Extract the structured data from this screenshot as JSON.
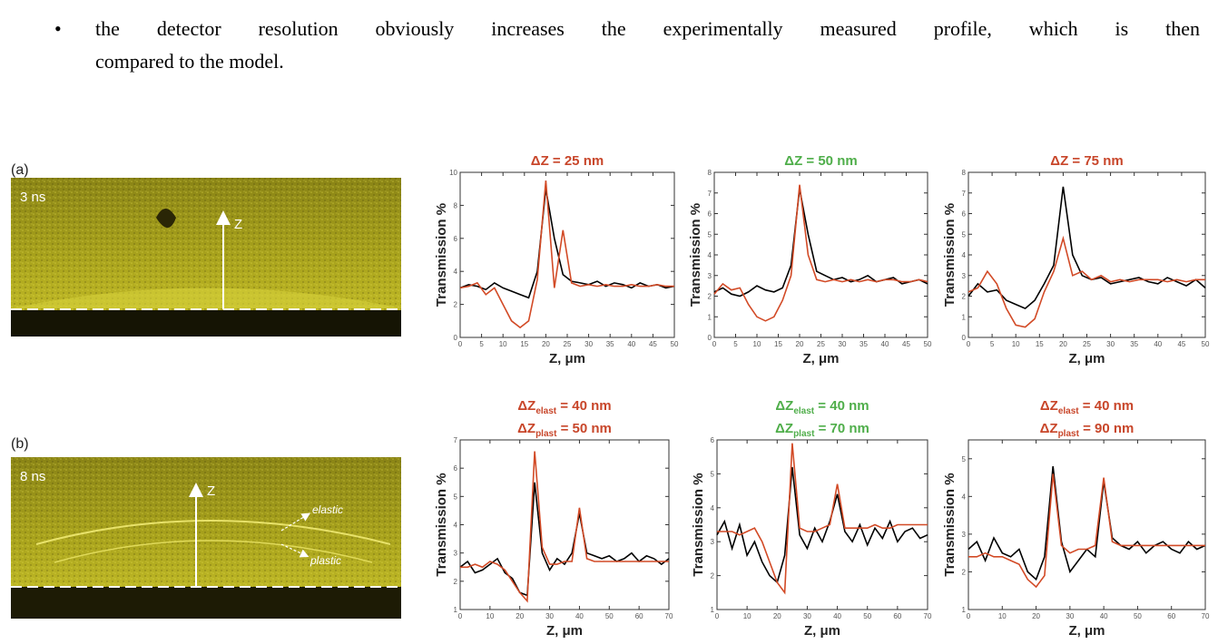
{
  "text": {
    "lines": [
      "the detector resolution obviously increases the experimentally measured profile, which is then",
      "compared to the model."
    ]
  },
  "figure": {
    "panels": [
      {
        "label": "(a)",
        "time": "3 ns",
        "axis_label": "Z"
      },
      {
        "label": "(b)",
        "time": "8 ns",
        "axis_label": "Z",
        "annotations": [
          "elastic",
          "plastic"
        ]
      }
    ]
  },
  "chart_data": [
    {
      "type": "line",
      "title_color": "#c8462a",
      "title_lines": [
        {
          "text": "ΔZ = 25 nm"
        }
      ],
      "x_label": "Z, μm",
      "y_label": "Transmission %",
      "xlim": [
        0,
        50
      ],
      "xticks": [
        0,
        5,
        10,
        15,
        20,
        25,
        30,
        35,
        40,
        45,
        50
      ],
      "ylim": [
        0,
        10
      ],
      "yticks": [
        0,
        2,
        4,
        6,
        8,
        10
      ],
      "x": [
        0,
        2,
        4,
        6,
        8,
        10,
        12,
        14,
        16,
        18,
        20,
        22,
        24,
        26,
        28,
        30,
        32,
        34,
        36,
        38,
        40,
        42,
        44,
        46,
        48,
        50
      ],
      "series": [
        {
          "color": "#000000",
          "values": [
            3.0,
            3.2,
            3.1,
            2.9,
            3.3,
            3.0,
            2.8,
            2.6,
            2.4,
            4.0,
            9.0,
            6.0,
            3.8,
            3.4,
            3.3,
            3.2,
            3.4,
            3.1,
            3.3,
            3.2,
            3.0,
            3.3,
            3.1,
            3.2,
            3.0,
            3.1
          ]
        },
        {
          "color": "#d24a26",
          "values": [
            3.0,
            3.1,
            3.3,
            2.6,
            3.0,
            2.0,
            1.0,
            0.6,
            1.0,
            3.5,
            9.5,
            3.0,
            6.5,
            3.3,
            3.1,
            3.2,
            3.1,
            3.2,
            3.1,
            3.1,
            3.2,
            3.1,
            3.1,
            3.2,
            3.1,
            3.1
          ]
        }
      ]
    },
    {
      "type": "line",
      "title_color": "#4fae4a",
      "title_lines": [
        {
          "text": "ΔZ = 50 nm"
        }
      ],
      "x_label": "Z, μm",
      "y_label": "Transmission %",
      "xlim": [
        0,
        50
      ],
      "xticks": [
        0,
        5,
        10,
        15,
        20,
        25,
        30,
        35,
        40,
        45,
        50
      ],
      "ylim": [
        0,
        8
      ],
      "yticks": [
        0,
        1,
        2,
        3,
        4,
        5,
        6,
        7,
        8
      ],
      "x": [
        0,
        2,
        4,
        6,
        8,
        10,
        12,
        14,
        16,
        18,
        20,
        22,
        24,
        26,
        28,
        30,
        32,
        34,
        36,
        38,
        40,
        42,
        44,
        46,
        48,
        50
      ],
      "series": [
        {
          "color": "#000000",
          "values": [
            2.2,
            2.4,
            2.1,
            2.0,
            2.2,
            2.5,
            2.3,
            2.2,
            2.4,
            3.5,
            7.2,
            5.0,
            3.2,
            3.0,
            2.8,
            2.9,
            2.7,
            2.8,
            3.0,
            2.7,
            2.8,
            2.9,
            2.6,
            2.7,
            2.8,
            2.6
          ]
        },
        {
          "color": "#d24a26",
          "values": [
            2.1,
            2.6,
            2.3,
            2.4,
            1.6,
            1.0,
            0.8,
            1.0,
            1.8,
            3.0,
            7.4,
            4.0,
            2.8,
            2.7,
            2.8,
            2.7,
            2.8,
            2.7,
            2.8,
            2.7,
            2.8,
            2.8,
            2.7,
            2.7,
            2.8,
            2.7
          ]
        }
      ]
    },
    {
      "type": "line",
      "title_color": "#c8462a",
      "title_lines": [
        {
          "text": "ΔZ = 75 nm"
        }
      ],
      "x_label": "Z, μm",
      "y_label": "Transmission %",
      "xlim": [
        0,
        50
      ],
      "xticks": [
        0,
        5,
        10,
        15,
        20,
        25,
        30,
        35,
        40,
        45,
        50
      ],
      "ylim": [
        0,
        8
      ],
      "yticks": [
        0,
        1,
        2,
        3,
        4,
        5,
        6,
        7,
        8
      ],
      "x": [
        0,
        2,
        4,
        6,
        8,
        10,
        12,
        14,
        16,
        18,
        20,
        22,
        24,
        26,
        28,
        30,
        32,
        34,
        36,
        38,
        40,
        42,
        44,
        46,
        48,
        50
      ],
      "series": [
        {
          "color": "#000000",
          "values": [
            2.0,
            2.6,
            2.2,
            2.3,
            1.8,
            1.6,
            1.4,
            1.8,
            2.6,
            3.5,
            7.3,
            4.0,
            3.0,
            2.8,
            2.9,
            2.6,
            2.7,
            2.8,
            2.9,
            2.7,
            2.6,
            2.9,
            2.7,
            2.5,
            2.8,
            2.4
          ]
        },
        {
          "color": "#d24a26",
          "values": [
            2.2,
            2.4,
            3.2,
            2.6,
            1.4,
            0.6,
            0.5,
            0.9,
            2.2,
            3.2,
            4.8,
            3.0,
            3.2,
            2.8,
            3.0,
            2.7,
            2.8,
            2.7,
            2.8,
            2.8,
            2.8,
            2.7,
            2.8,
            2.7,
            2.8,
            2.8
          ]
        }
      ]
    },
    {
      "type": "line",
      "title_color": "#c8462a",
      "title_lines": [
        {
          "text": "ΔZ",
          "sub": "elast",
          "rest": " =  40 nm"
        },
        {
          "text": "ΔZ",
          "sub": "plast",
          "rest": " =  50 nm"
        }
      ],
      "x_label": "Z, μm",
      "y_label": "Transmission %",
      "xlim": [
        0,
        70
      ],
      "xticks": [
        0,
        10,
        20,
        30,
        40,
        50,
        60,
        70
      ],
      "ylim": [
        1,
        7
      ],
      "yticks": [
        1,
        2,
        3,
        4,
        5,
        6,
        7
      ],
      "x": [
        0,
        2.5,
        5,
        7.5,
        10,
        12.5,
        15,
        17.5,
        20,
        22.5,
        25,
        27.5,
        30,
        32.5,
        35,
        37.5,
        40,
        42.5,
        45,
        47.5,
        50,
        52.5,
        55,
        57.5,
        60,
        62.5,
        65,
        67.5,
        70
      ],
      "series": [
        {
          "color": "#000000",
          "values": [
            2.5,
            2.7,
            2.3,
            2.4,
            2.6,
            2.8,
            2.3,
            2.1,
            1.6,
            1.5,
            5.5,
            3.0,
            2.4,
            2.8,
            2.6,
            3.0,
            4.4,
            3.0,
            2.9,
            2.8,
            2.9,
            2.7,
            2.8,
            3.0,
            2.7,
            2.9,
            2.8,
            2.6,
            2.8
          ]
        },
        {
          "color": "#d24a26",
          "values": [
            2.5,
            2.5,
            2.6,
            2.5,
            2.7,
            2.6,
            2.4,
            2.0,
            1.6,
            1.3,
            6.6,
            3.2,
            2.6,
            2.6,
            2.7,
            2.7,
            4.6,
            2.8,
            2.7,
            2.7,
            2.7,
            2.7,
            2.7,
            2.7,
            2.7,
            2.7,
            2.7,
            2.7,
            2.7
          ]
        }
      ]
    },
    {
      "type": "line",
      "title_color": "#4fae4a",
      "title_lines": [
        {
          "text": "ΔZ",
          "sub": "elast",
          "rest": " =  40 nm"
        },
        {
          "text": "ΔZ",
          "sub": "plast",
          "rest": " =  70 nm"
        }
      ],
      "x_label": "Z, μm",
      "y_label": "Transmission %",
      "xlim": [
        0,
        70
      ],
      "xticks": [
        0,
        10,
        20,
        30,
        40,
        50,
        60,
        70
      ],
      "ylim": [
        1,
        6
      ],
      "yticks": [
        1,
        2,
        3,
        4,
        5,
        6
      ],
      "x": [
        0,
        2.5,
        5,
        7.5,
        10,
        12.5,
        15,
        17.5,
        20,
        22.5,
        25,
        27.5,
        30,
        32.5,
        35,
        37.5,
        40,
        42.5,
        45,
        47.5,
        50,
        52.5,
        55,
        57.5,
        60,
        62.5,
        65,
        67.5,
        70
      ],
      "series": [
        {
          "color": "#000000",
          "values": [
            3.2,
            3.6,
            2.8,
            3.5,
            2.6,
            3.0,
            2.4,
            2.0,
            1.8,
            2.6,
            5.2,
            3.2,
            2.8,
            3.4,
            3.0,
            3.6,
            4.4,
            3.3,
            3.0,
            3.5,
            2.9,
            3.4,
            3.1,
            3.6,
            3.0,
            3.3,
            3.4,
            3.1,
            3.2
          ]
        },
        {
          "color": "#d24a26",
          "values": [
            3.3,
            3.3,
            3.3,
            3.2,
            3.3,
            3.4,
            3.0,
            2.4,
            1.8,
            1.5,
            5.9,
            3.4,
            3.3,
            3.3,
            3.4,
            3.5,
            4.7,
            3.4,
            3.4,
            3.4,
            3.4,
            3.5,
            3.4,
            3.4,
            3.5,
            3.5,
            3.5,
            3.5,
            3.5
          ]
        }
      ]
    },
    {
      "type": "line",
      "title_color": "#c8462a",
      "title_lines": [
        {
          "text": "ΔZ",
          "sub": "elast",
          "rest": " =  40 nm"
        },
        {
          "text": "ΔZ",
          "sub": "plast",
          "rest": " =  90 nm"
        }
      ],
      "x_label": "Z, μm",
      "y_label": "Transmission %",
      "xlim": [
        0,
        70
      ],
      "xticks": [
        0,
        10,
        20,
        30,
        40,
        50,
        60,
        70
      ],
      "ylim": [
        1,
        5.5
      ],
      "yticks": [
        1,
        2,
        3,
        4,
        5
      ],
      "x": [
        0,
        2.5,
        5,
        7.5,
        10,
        12.5,
        15,
        17.5,
        20,
        22.5,
        25,
        27.5,
        30,
        32.5,
        35,
        37.5,
        40,
        42.5,
        45,
        47.5,
        50,
        52.5,
        55,
        57.5,
        60,
        62.5,
        65,
        67.5,
        70
      ],
      "series": [
        {
          "color": "#000000",
          "values": [
            2.6,
            2.8,
            2.3,
            2.9,
            2.5,
            2.4,
            2.6,
            2.0,
            1.8,
            2.4,
            4.8,
            2.8,
            2.0,
            2.3,
            2.6,
            2.4,
            4.4,
            2.9,
            2.7,
            2.6,
            2.8,
            2.5,
            2.7,
            2.8,
            2.6,
            2.5,
            2.8,
            2.6,
            2.7
          ]
        },
        {
          "color": "#d24a26",
          "values": [
            2.4,
            2.4,
            2.5,
            2.4,
            2.4,
            2.3,
            2.2,
            1.8,
            1.6,
            1.9,
            4.6,
            2.7,
            2.5,
            2.6,
            2.6,
            2.7,
            4.5,
            2.8,
            2.7,
            2.7,
            2.7,
            2.7,
            2.7,
            2.7,
            2.7,
            2.7,
            2.7,
            2.7,
            2.7
          ]
        }
      ]
    }
  ]
}
